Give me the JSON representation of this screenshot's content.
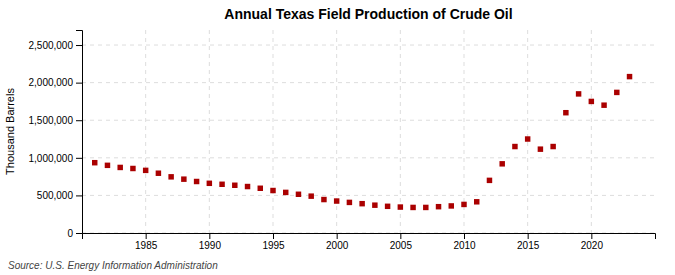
{
  "chart_data": {
    "type": "scatter",
    "title": "Annual Texas Field Production of Crude Oil",
    "y_label": "Thousand Barrels",
    "annotation": "Source: U.S. Energy Information Administration",
    "x": [
      1981,
      1982,
      1983,
      1984,
      1985,
      1986,
      1987,
      1988,
      1989,
      1990,
      1991,
      1992,
      1993,
      1994,
      1995,
      1996,
      1997,
      1998,
      1999,
      2000,
      2001,
      2002,
      2003,
      2004,
      2005,
      2006,
      2007,
      2008,
      2009,
      2010,
      2011,
      2012,
      2013,
      2014,
      2015,
      2016,
      2017,
      2018,
      2019,
      2020,
      2021,
      2022,
      2023
    ],
    "values": [
      935000,
      900000,
      872000,
      858000,
      833000,
      795000,
      747000,
      716000,
      685000,
      661000,
      648000,
      635000,
      618000,
      595000,
      565000,
      540000,
      515000,
      490000,
      445000,
      425000,
      407000,
      390000,
      370000,
      355000,
      345000,
      340000,
      340000,
      350000,
      360000,
      380000,
      415000,
      700000,
      920000,
      1150000,
      1250000,
      1115000,
      1150000,
      1600000,
      1850000,
      1750000,
      1700000,
      1870000,
      2080000
    ],
    "color": "#aa0000",
    "marker": "square",
    "xlim": [
      1980,
      2025
    ],
    "xticks": [
      1985,
      1990,
      1995,
      2000,
      2005,
      2010,
      2015,
      2020
    ],
    "ylim": [
      0,
      2700000
    ],
    "yticks": [
      0,
      {
        "value": 500000,
        "label": "500,000"
      },
      {
        "value": 1000000,
        "label": "1,000,000"
      },
      {
        "value": 1500000,
        "label": "1,500,000"
      },
      {
        "value": 2000000,
        "label": "2,000,000"
      },
      {
        "value": 2500000,
        "label": "2,500,000"
      }
    ],
    "grid": true
  }
}
